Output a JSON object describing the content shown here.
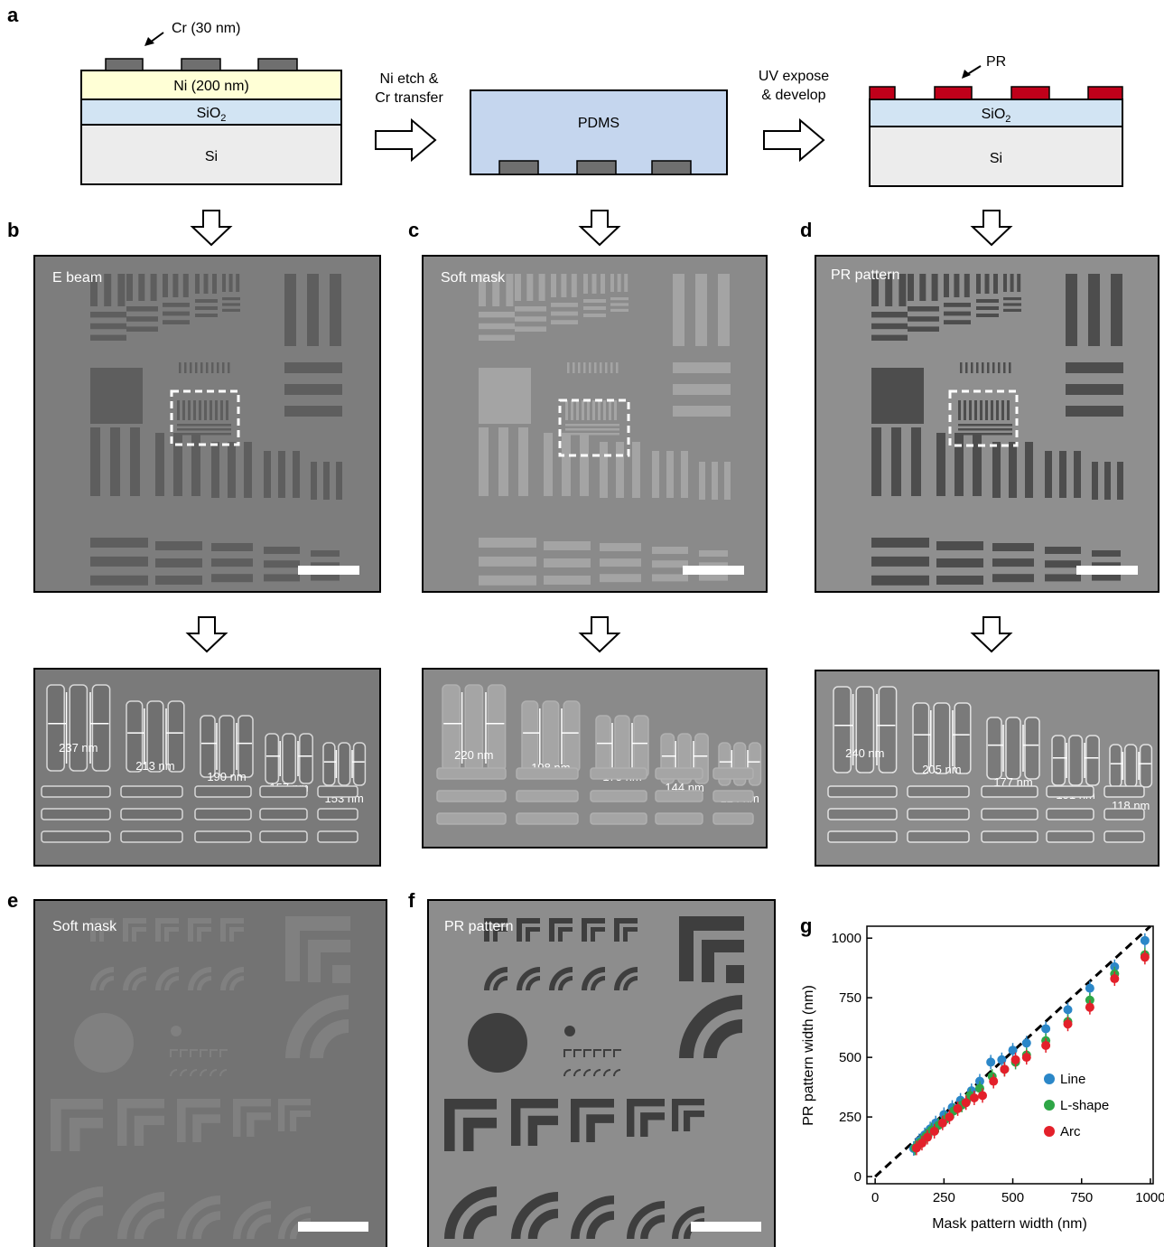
{
  "panel_labels": {
    "a": "a",
    "b": "b",
    "c": "c",
    "d": "d",
    "e": "e",
    "f": "f",
    "g": "g"
  },
  "schematic": {
    "cr_label": "Cr (30 nm)",
    "ni_label": "Ni (200 nm)",
    "sio2_label": "SiO",
    "sio2_sub": "2",
    "si_label": "Si",
    "step1_line1": "Ni etch &",
    "step1_line2": "Cr transfer",
    "pdms_label": "PDMS",
    "step2_line1": "UV expose",
    "step2_line2": "& develop",
    "pr_label": "PR",
    "colors": {
      "ni": "#ffffd6",
      "sio2": "#d2e4f3",
      "si": "#ececec",
      "pdms": "#c5d6ee",
      "cr": "#6f6f6f",
      "pr": "#c0001a"
    }
  },
  "sem": {
    "b_title": "E beam",
    "c_title": "Soft mask",
    "d_title": "PR pattern",
    "e_title": "Soft mask",
    "f_title": "PR pattern",
    "b_zoom": [
      "237 nm",
      "213 nm",
      "190 nm",
      "157 nm",
      "153 nm"
    ],
    "c_zoom": [
      "220 nm",
      "198 nm",
      "175 nm",
      "144 nm",
      "124 nm"
    ],
    "d_zoom": [
      "240 nm",
      "205 nm",
      "177 nm",
      "151 nm",
      "118 nm"
    ]
  },
  "chart_data": {
    "type": "scatter",
    "title": "",
    "xlabel": "Mask pattern width (nm)",
    "ylabel": "PR pattern width (nm)",
    "xlim": [
      -30,
      1010
    ],
    "ylim": [
      -30,
      1050
    ],
    "xticks": [
      0,
      250,
      500,
      750,
      1000
    ],
    "yticks": [
      0,
      250,
      500,
      750,
      1000
    ],
    "legend_position": "bottom-right",
    "fit_line": {
      "style": "dashed",
      "x": [
        0,
        1000
      ],
      "y": [
        0,
        1050
      ]
    },
    "series": [
      {
        "name": "Line",
        "color": "#2b87c8",
        "x": [
          140,
          160,
          180,
          200,
          220,
          250,
          280,
          310,
          350,
          380,
          420,
          460,
          500,
          550,
          620,
          700,
          780,
          870,
          980
        ],
        "y": [
          118,
          150,
          175,
          200,
          225,
          260,
          290,
          320,
          360,
          400,
          480,
          490,
          530,
          560,
          620,
          700,
          790,
          880,
          990
        ]
      },
      {
        "name": "L-shape",
        "color": "#2ea646",
        "x": [
          145,
          165,
          185,
          205,
          230,
          255,
          285,
          315,
          345,
          380,
          425,
          470,
          510,
          550,
          620,
          700,
          780,
          870,
          980
        ],
        "y": [
          120,
          145,
          170,
          195,
          215,
          240,
          275,
          300,
          340,
          370,
          420,
          450,
          480,
          510,
          570,
          650,
          740,
          850,
          930
        ]
      },
      {
        "name": "Arc",
        "color": "#e3202a",
        "x": [
          150,
          170,
          190,
          215,
          245,
          270,
          300,
          330,
          360,
          390,
          430,
          470,
          510,
          550,
          620,
          700,
          780,
          870,
          980
        ],
        "y": [
          120,
          140,
          165,
          190,
          225,
          250,
          285,
          310,
          330,
          340,
          400,
          450,
          490,
          500,
          550,
          640,
          710,
          830,
          920
        ]
      }
    ]
  }
}
